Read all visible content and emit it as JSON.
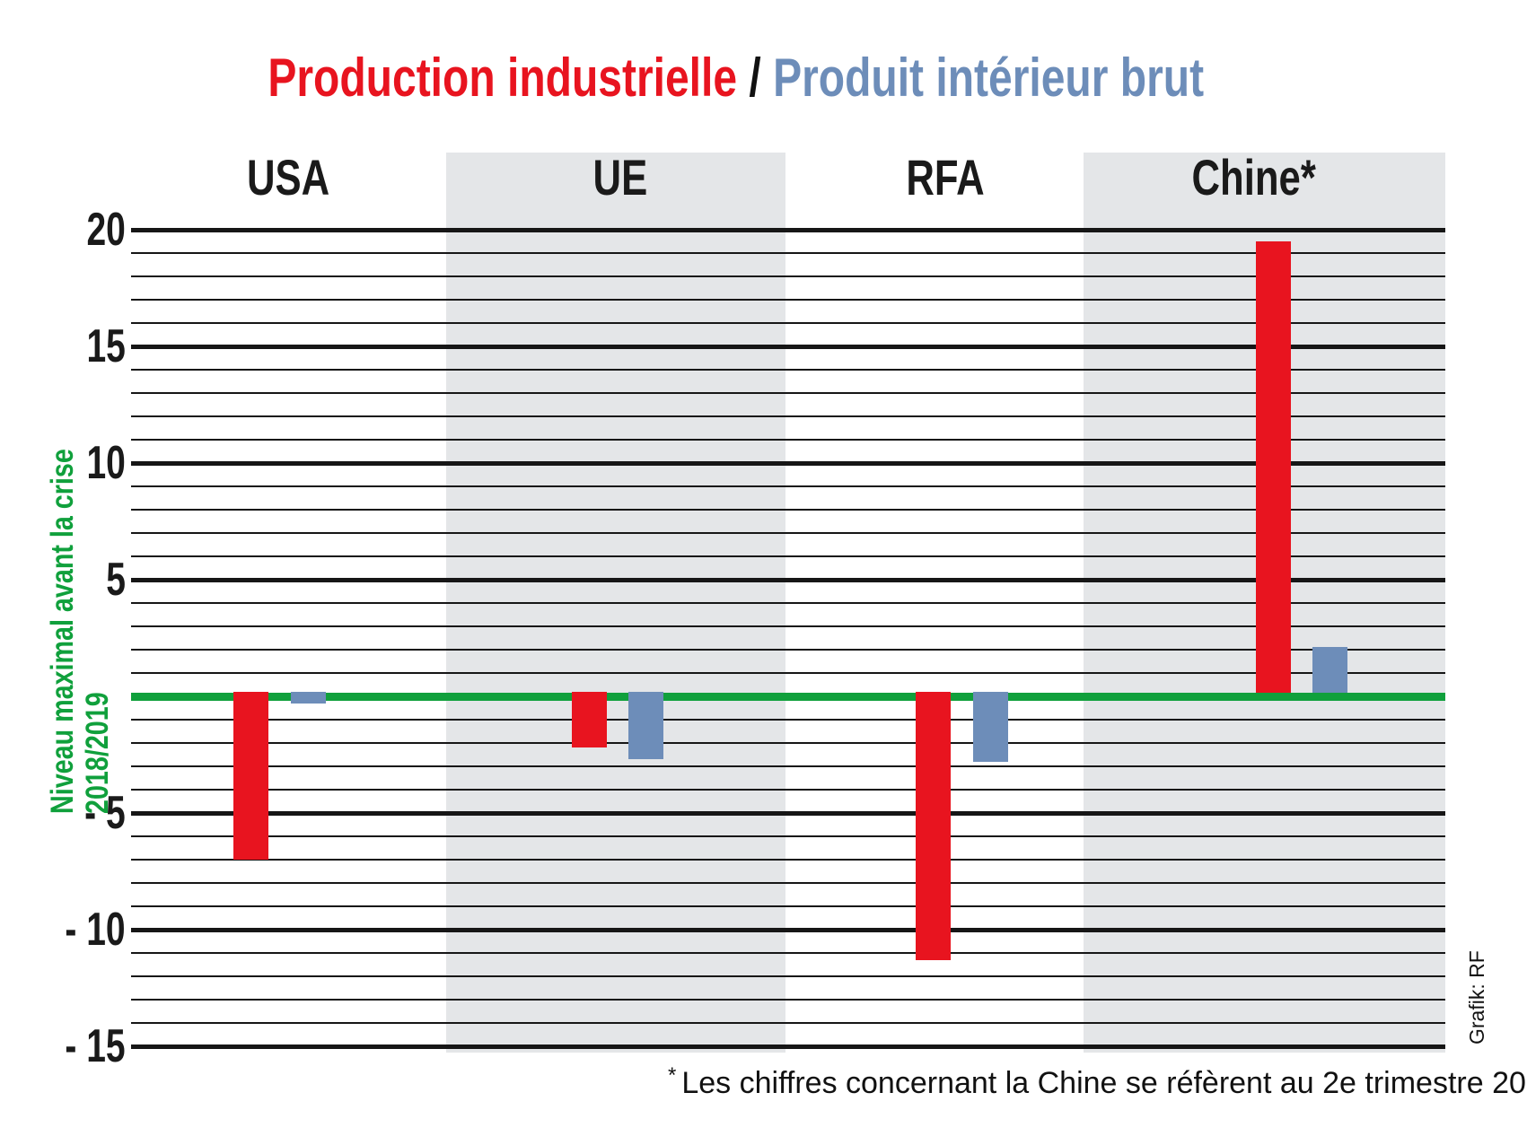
{
  "title": {
    "part1": "Production industrielle",
    "separator": " / ",
    "part2": "Produit intérieur brut"
  },
  "colors": {
    "industrial_production": "#e8141f",
    "gdp": "#6d8db9",
    "baseline_green": "#10a03c",
    "band_gray": "#e4e6e8",
    "grid_black": "#161616"
  },
  "axis": {
    "baseline_label_line1": "Niveau maximal avant la crise",
    "baseline_label_line2": "2018/2019"
  },
  "chart_data": {
    "type": "bar",
    "categories": [
      "USA",
      "UE",
      "RFA",
      "Chine*"
    ],
    "series": [
      {
        "name": "Production industrielle",
        "color_key": "industrial_production",
        "values": [
          -7,
          -2.2,
          -11.3,
          19.5
        ]
      },
      {
        "name": "Produit intérieur brut",
        "color_key": "gdp",
        "values": [
          -0.3,
          -2.7,
          -2.8,
          2.1
        ]
      }
    ],
    "ylim": [
      -15,
      20
    ],
    "yticks": [
      20,
      15,
      10,
      5,
      -5,
      -10,
      -15
    ],
    "grid_step": 1,
    "major_step": 5,
    "baseline": 0,
    "banded_category_indexes": [
      1,
      3
    ],
    "legend_position": "title-inline",
    "grid": true
  },
  "footnote": {
    "marker": "*",
    "text": "Les chiffres concernant la Chine se réfèrent au 2e trimestre 20"
  },
  "credit": "Grafik: RF"
}
